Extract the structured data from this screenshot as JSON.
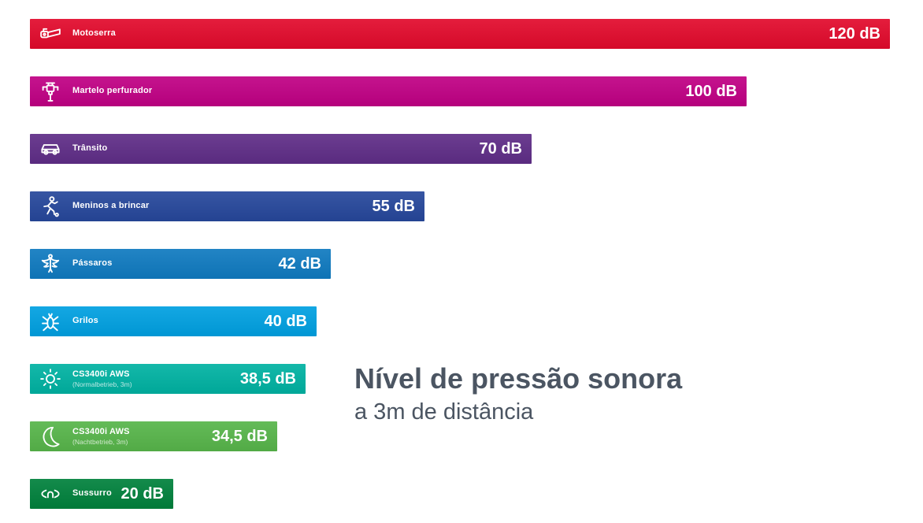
{
  "chart_data": {
    "type": "bar",
    "orientation": "horizontal",
    "title": "Nível de pressão sonora",
    "subtitle": "a 3m de distância",
    "unit": "dB",
    "xlim": [
      0,
      120
    ],
    "legend": "none",
    "grid": false,
    "title_color": "#4b5562",
    "bars": [
      {
        "label": "Motoserra",
        "sublabel": "",
        "value": 120,
        "value_label": "120 dB",
        "color": "#e20a2c",
        "icon": "chainsaw-icon"
      },
      {
        "label": "Martelo perfurador",
        "sublabel": "",
        "value": 100,
        "value_label": "100 dB",
        "color": "#c00084",
        "icon": "jackhammer-icon"
      },
      {
        "label": "Trânsito",
        "sublabel": "",
        "value": 70,
        "value_label": "70 dB",
        "color": "#5f2d87",
        "icon": "car-icon"
      },
      {
        "label": "Meninos a brincar",
        "sublabel": "",
        "value": 55,
        "value_label": "55 dB",
        "color": "#26479b",
        "icon": "child-playing-icon"
      },
      {
        "label": "Pássaros",
        "sublabel": "",
        "value": 42,
        "value_label": "42 dB",
        "color": "#0f7ac0",
        "icon": "bird-icon"
      },
      {
        "label": "Grilos",
        "sublabel": "",
        "value": 40,
        "value_label": "40 dB",
        "color": "#00a0e1",
        "icon": "cricket-icon"
      },
      {
        "label": "CS3400i AWS",
        "sublabel": "(Normalbetrieb, 3m)",
        "value": 38.5,
        "value_label": "38,5 dB",
        "color": "#00b2a2",
        "icon": "sun-icon"
      },
      {
        "label": "CS3400i AWS",
        "sublabel": "(Nachtbetrieb, 3m)",
        "value": 34.5,
        "value_label": "34,5 dB",
        "color": "#57b54a",
        "icon": "moon-icon"
      },
      {
        "label": "Sussurro",
        "sublabel": "",
        "value": 20,
        "value_label": "20 dB",
        "color": "#00813c",
        "icon": "whisper-icon"
      }
    ]
  }
}
